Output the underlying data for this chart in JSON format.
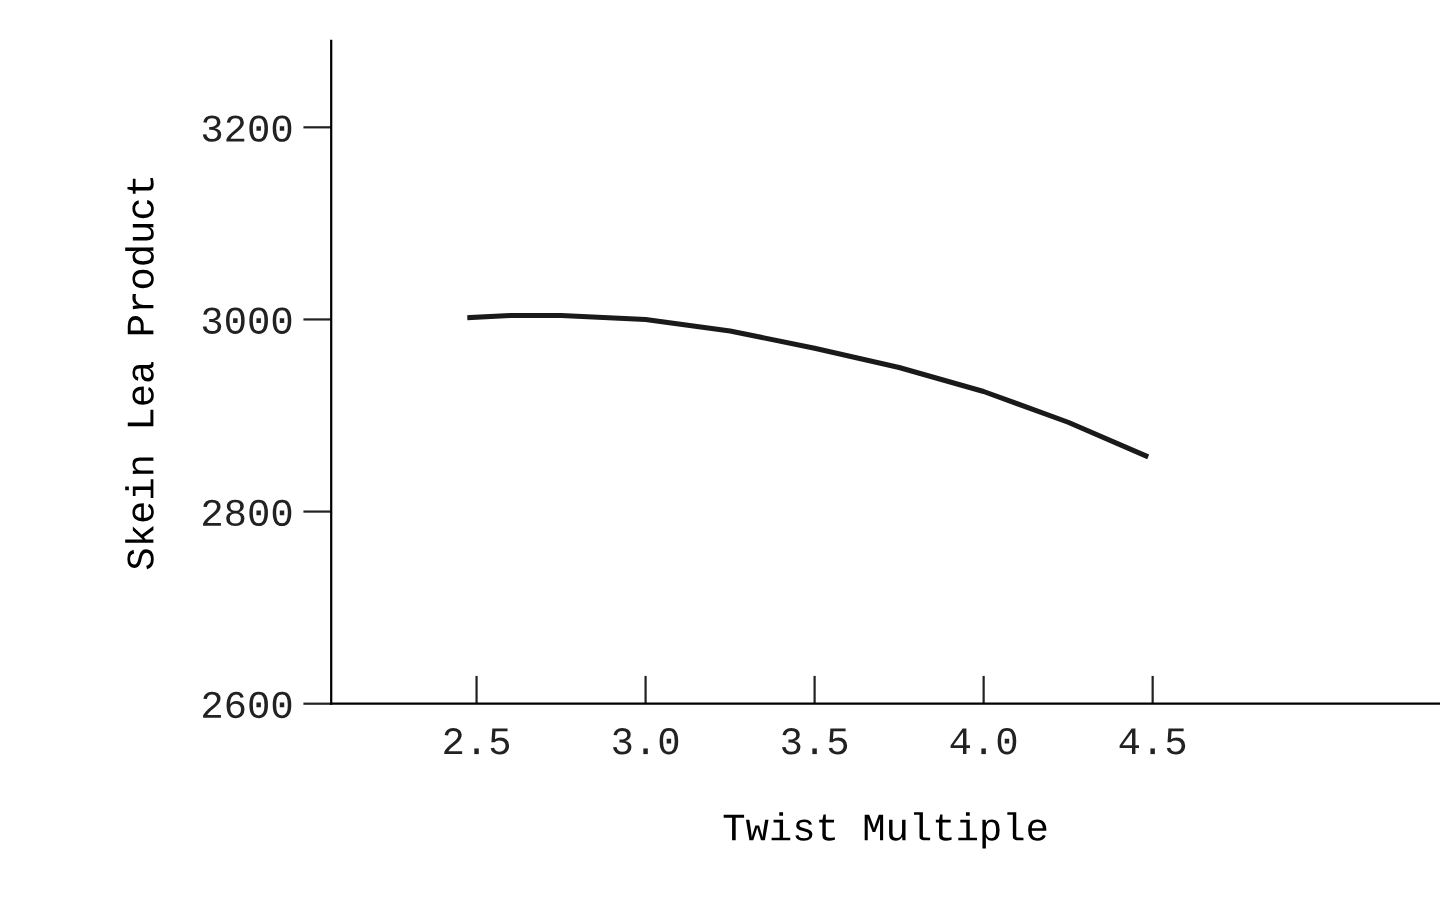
{
  "chart_data": {
    "type": "line",
    "xlabel": "Twist Multiple",
    "ylabel": "Skein Lea Product",
    "x": [
      2.48,
      2.6,
      2.75,
      3.0,
      3.25,
      3.5,
      3.75,
      4.0,
      4.25,
      4.48
    ],
    "series": [
      {
        "color": "#1a1a1a",
        "values": [
          3002,
          3004,
          3004,
          3000,
          2988,
          2970,
          2950,
          2925,
          2893,
          2858
        ]
      }
    ],
    "xlim": [
      2.07,
      5.35
    ],
    "ylim": [
      2600,
      3290
    ],
    "xticks": [
      2.5,
      {
        "value": 3.0,
        "label": "3.0"
      },
      3.5,
      {
        "value": 4.0,
        "label": "4.0"
      },
      4.5
    ],
    "yticks": [
      2600,
      2800,
      3000,
      3200
    ],
    "grid": false,
    "legend": false,
    "marker": "none",
    "line_style": "solid"
  }
}
